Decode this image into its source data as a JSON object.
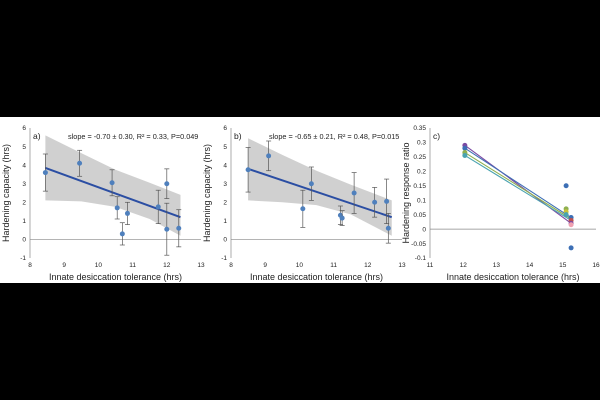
{
  "chart_data": [
    {
      "type": "scatter",
      "panel_label": "a)",
      "annotation": "slope = -0.70 ± 0.30, R² = 0.33, P=0.049",
      "xlabel": "Innate desiccation tolerance (hrs)",
      "ylabel": "Hardening capacity (hrs)",
      "xlim": [
        8,
        13
      ],
      "ylim": [
        -1,
        6
      ],
      "xticks": [
        "8",
        "9",
        "10",
        "11",
        "12",
        "13"
      ],
      "yticks": [
        "-1",
        "0",
        "1",
        "2",
        "3",
        "4",
        "5",
        "6"
      ],
      "grid": false,
      "points": [
        {
          "x": 8.45,
          "y": 3.6,
          "err": 1.0
        },
        {
          "x": 9.45,
          "y": 4.1,
          "err": 0.7
        },
        {
          "x": 10.4,
          "y": 3.05,
          "err": 0.7
        },
        {
          "x": 10.55,
          "y": 1.7,
          "err": 0.6
        },
        {
          "x": 10.7,
          "y": 0.3,
          "err": 0.6
        },
        {
          "x": 10.85,
          "y": 1.4,
          "err": 0.6
        },
        {
          "x": 11.75,
          "y": 1.75,
          "err": 0.9
        },
        {
          "x": 12.0,
          "y": 3.0,
          "err": 0.8
        },
        {
          "x": 12.0,
          "y": 0.55,
          "err": 1.4
        },
        {
          "x": 12.35,
          "y": 0.6,
          "err": 1.0
        }
      ],
      "fit": {
        "x": [
          8.45,
          12.4
        ],
        "y": [
          3.85,
          1.2
        ]
      },
      "band": {
        "x": [
          8.45,
          9.5,
          10.5,
          11.5,
          12.4
        ],
        "lower": [
          2.1,
          2.05,
          1.75,
          1.1,
          0.2
        ],
        "upper": [
          5.6,
          4.65,
          3.75,
          3.05,
          2.4
        ]
      },
      "color": "#4f80bd",
      "fit_color": "#2b4ea3",
      "band_color": "#c8c8c8"
    },
    {
      "type": "scatter",
      "panel_label": "b)",
      "annotation": "slope = -0.65 ± 0.21, R² = 0.48, P=0.015",
      "xlabel": "Innate desiccation tolerance (hrs)",
      "ylabel": "Hardening capacity (hrs)",
      "xlim": [
        8,
        13
      ],
      "ylim": [
        -1,
        6
      ],
      "xticks": [
        "8",
        "9",
        "10",
        "11",
        "12",
        "13"
      ],
      "yticks": [
        "-1",
        "0",
        "1",
        "2",
        "3",
        "4",
        "5",
        "6"
      ],
      "grid": false,
      "points": [
        {
          "x": 8.5,
          "y": 3.75,
          "err": 1.2
        },
        {
          "x": 9.1,
          "y": 4.5,
          "err": 0.8
        },
        {
          "x": 10.1,
          "y": 1.65,
          "err": 1.0
        },
        {
          "x": 10.35,
          "y": 3.0,
          "err": 0.9
        },
        {
          "x": 11.2,
          "y": 1.3,
          "err": 0.5
        },
        {
          "x": 11.25,
          "y": 1.15,
          "err": 0.4
        },
        {
          "x": 11.6,
          "y": 2.5,
          "err": 1.1
        },
        {
          "x": 12.2,
          "y": 2.0,
          "err": 0.8
        },
        {
          "x": 12.55,
          "y": 2.05,
          "err": 1.2
        },
        {
          "x": 12.6,
          "y": 0.6,
          "err": 0.8
        }
      ],
      "fit": {
        "x": [
          8.5,
          12.7
        ],
        "y": [
          3.8,
          1.2
        ]
      },
      "band": {
        "x": [
          8.5,
          9.5,
          10.5,
          11.5,
          12.7
        ],
        "lower": [
          2.1,
          2.0,
          1.85,
          1.35,
          0.2
        ],
        "upper": [
          5.45,
          4.55,
          3.7,
          2.95,
          2.1
        ]
      },
      "color": "#4f80bd",
      "fit_color": "#2b4ea3",
      "band_color": "#c8c8c8"
    },
    {
      "type": "line",
      "panel_label": "c)",
      "xlabel": "Innate desiccation tolerance (hrs)",
      "ylabel": "Hardening response ratio",
      "xlim": [
        11,
        16
      ],
      "ylim": [
        -0.1,
        0.35
      ],
      "xticks": [
        "11",
        "12",
        "13",
        "14",
        "15",
        "16"
      ],
      "yticks": [
        "-0.1",
        "-0.05",
        "0",
        "0.05",
        "0.1",
        "0.15",
        "0.2",
        "0.25",
        "0.3",
        "0.35"
      ],
      "grid": false,
      "lines": [
        {
          "color": "#7b4aa3",
          "x": [
            12.05,
            15.25
          ],
          "y": [
            0.29,
            0.02
          ]
        },
        {
          "color": "#3d6fb5",
          "x": [
            12.05,
            15.25
          ],
          "y": [
            0.28,
            0.04
          ]
        },
        {
          "color": "#8fb04f",
          "x": [
            12.05,
            15.25
          ],
          "y": [
            0.265,
            0.035
          ]
        },
        {
          "color": "#4aa3b0",
          "x": [
            12.05,
            15.25
          ],
          "y": [
            0.255,
            0.03
          ]
        }
      ],
      "points": [
        {
          "x": 12.05,
          "y": 0.29,
          "color": "#7b4aa3"
        },
        {
          "x": 12.05,
          "y": 0.28,
          "color": "#3d6fb5"
        },
        {
          "x": 12.05,
          "y": 0.265,
          "color": "#8fb04f"
        },
        {
          "x": 12.05,
          "y": 0.255,
          "color": "#4aa3b0"
        },
        {
          "x": 15.1,
          "y": 0.15,
          "color": "#3d6fb5"
        },
        {
          "x": 15.1,
          "y": 0.07,
          "color": "#8fb04f"
        },
        {
          "x": 15.1,
          "y": 0.06,
          "color": "#c9c23a"
        },
        {
          "x": 15.1,
          "y": 0.05,
          "color": "#4aa3b0"
        },
        {
          "x": 15.25,
          "y": 0.04,
          "color": "#3d6fb5"
        },
        {
          "x": 15.25,
          "y": 0.03,
          "color": "#c0504d"
        },
        {
          "x": 15.25,
          "y": 0.02,
          "color": "#7b4aa3"
        },
        {
          "x": 15.25,
          "y": 0.015,
          "color": "#f0a0b0"
        },
        {
          "x": 15.25,
          "y": -0.065,
          "color": "#3d6fb5"
        }
      ]
    }
  ]
}
